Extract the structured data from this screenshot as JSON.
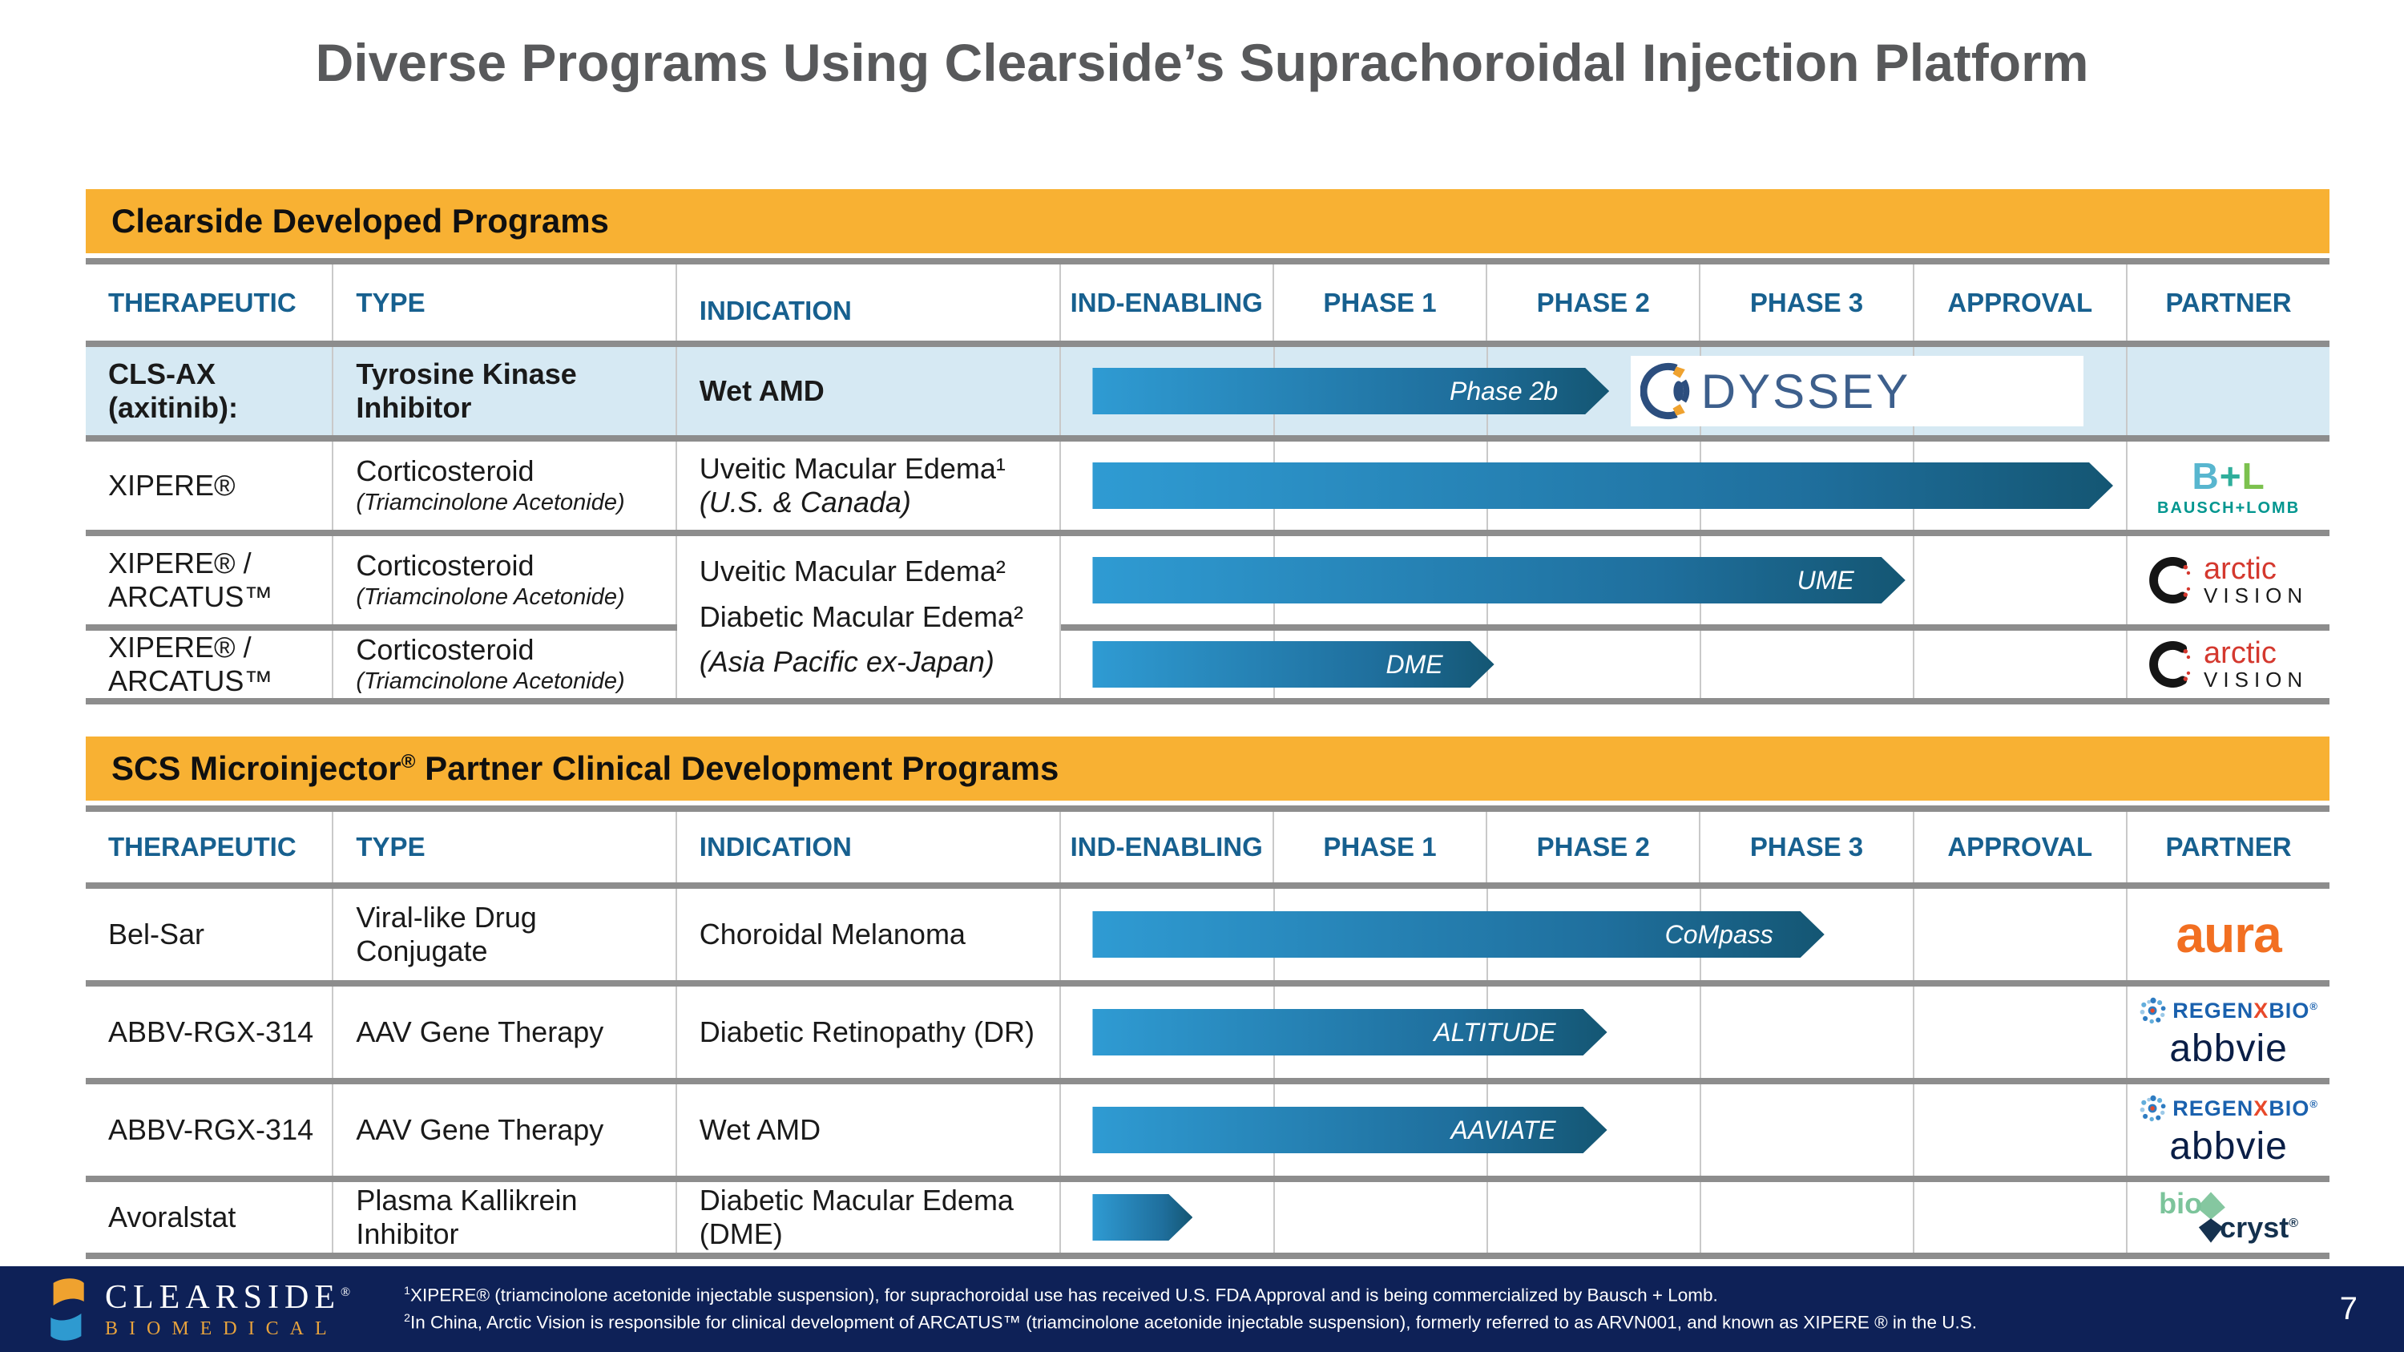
{
  "title": "Diverse Programs Using Clearside’s Suprachoroidal Injection Platform",
  "page_number": "7",
  "columns": [
    "THERAPEUTIC",
    "TYPE",
    "INDICATION",
    "IND-ENABLING",
    "PHASE 1",
    "PHASE 2",
    "PHASE 3",
    "APPROVAL",
    "PARTNER"
  ],
  "colors": {
    "band_yellow": "#F8B133",
    "header_blue": "#17608F",
    "highlight_row_blue": "#D6E9F3",
    "bar_gradient_start": "#2F9BD3",
    "bar_gradient_end": "#145673",
    "footer_navy": "#0E2157",
    "title_gray": "#58595B"
  },
  "section1": {
    "band": "Clearside Developed Programs",
    "rows": [
      {
        "therapeutic_l1": "CLS-AX",
        "therapeutic_l2": "(axitinib):",
        "type_main": "Tyrosine Kinase Inhibitor",
        "type_sub": "",
        "ind_l1": "Wet AMD",
        "ind_l2": "",
        "bar": {
          "label": "Phase 2b",
          "start": 3,
          "end": 51.5
        }
      },
      {
        "therapeutic_l1": "XIPERE®",
        "therapeutic_l2": "",
        "type_main": "Corticosteroid",
        "type_sub": "(Triamcinolone Acetonide)",
        "ind_l1": "Uveitic Macular Edema¹",
        "ind_l2": "(U.S. & Canada)",
        "bar": {
          "label": "",
          "start": 3,
          "end": 98.8
        }
      },
      {
        "therapeutic_l1": "XIPERE® /",
        "therapeutic_l2": "ARCATUS™",
        "type_main": "Corticosteroid",
        "type_sub": "(Triamcinolone Acetonide)",
        "bar": {
          "label": "UME",
          "start": 3,
          "end": 79.3
        }
      },
      {
        "therapeutic_l1": "XIPERE® /",
        "therapeutic_l2": "ARCATUS™",
        "type_main": "Corticosteroid",
        "type_sub": "(Triamcinolone Acetonide)",
        "bar": {
          "label": "DME",
          "start": 3,
          "end": 40.7
        }
      }
    ],
    "merged_indication": {
      "l1": "Uveitic Macular Edema²",
      "l2": "Diabetic Macular Edema²",
      "l3": "(Asia Pacific ex-Japan)"
    }
  },
  "section2": {
    "band_pre": "SCS Microinjector",
    "band_sup": "®",
    "band_post": " Partner Clinical Development Programs",
    "rows": [
      {
        "therapeutic": "Bel-Sar",
        "type": "Viral-like Drug Conjugate",
        "indication": "Choroidal Melanoma",
        "bar": {
          "label": "CoMpass",
          "start": 3,
          "end": 71.7
        }
      },
      {
        "therapeutic": "ABBV-RGX-314",
        "type": "AAV Gene Therapy",
        "indication": "Diabetic Retinopathy (DR)",
        "bar": {
          "label": "ALTITUDE",
          "start": 3,
          "end": 51.3
        }
      },
      {
        "therapeutic": "ABBV-RGX-314",
        "type": "AAV Gene Therapy",
        "indication": "Wet AMD",
        "bar": {
          "label": "AAVIATE",
          "start": 3,
          "end": 51.3
        }
      },
      {
        "therapeutic": "Avoralstat",
        "type": "Plasma Kallikrein Inhibitor",
        "indication": "Diabetic Macular Edema (DME)",
        "bar": {
          "label": "",
          "start": 3,
          "end": 12.4
        }
      }
    ]
  },
  "logos": {
    "odyssey_text": "DYSSEY",
    "bausch_lomb": {
      "b": "B",
      "plus": "+",
      "l": "L",
      "name": "BAUSCH+LOMB"
    },
    "arctic": {
      "name": "arctic",
      "sub": "VISION"
    },
    "aura": {
      "name": "aura"
    },
    "regenxbio": {
      "pre": "REGEN",
      "x": "X",
      "post": "BIO",
      "reg": "®"
    },
    "abbvie": {
      "name": "abbvie"
    },
    "biocryst": {
      "bio": "bio",
      "cryst": "cryst",
      "reg": "®"
    },
    "clearside": {
      "name": "CLEARSIDE",
      "reg": "®",
      "sub": "BIOMEDICAL"
    }
  },
  "footer": {
    "footnote1_sup": "1",
    "footnote1_text": "XIPERE® (triamcinolone acetonide injectable suspension), for suprachoroidal use has received U.S. FDA Approval and is being commercialized by Bausch + Lomb.",
    "footnote2_sup": "2",
    "footnote2_text": "In China, Arctic Vision is responsible for clinical development of ARCATUS™ (triamcinolone acetonide injectable suspension), formerly referred to as ARVN001, and known as XIPERE ® in the U.S."
  }
}
